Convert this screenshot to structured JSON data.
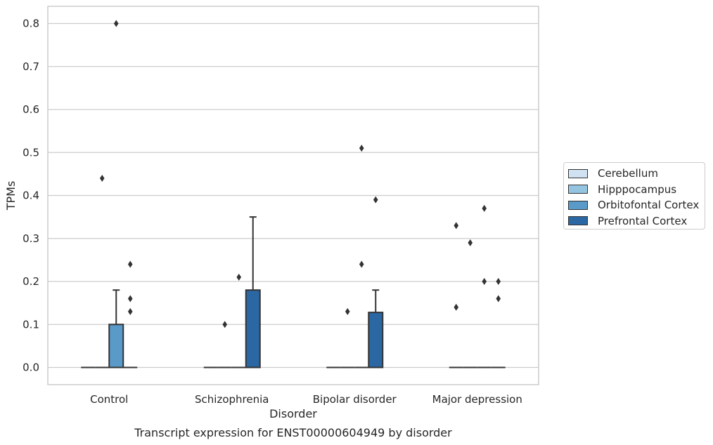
{
  "chart_data": {
    "type": "box",
    "caption": "Transcript expression for ENST00000604949 by disorder",
    "xlabel": "Disorder",
    "ylabel": "TPMs",
    "ylim": [
      -0.04,
      0.84
    ],
    "yticks": [
      "0.0",
      "0.1",
      "0.2",
      "0.3",
      "0.4",
      "0.5",
      "0.6",
      "0.7",
      "0.8"
    ],
    "grid": true,
    "legend_position": "right",
    "categories": [
      "Control",
      "Schizophrenia",
      "Bipolar disorder",
      "Major depression"
    ],
    "series": [
      {
        "name": "Cerebellum",
        "color": "#d0e1f2",
        "boxes": [
          {
            "category": "Control",
            "q1": 0.0,
            "median": 0.0,
            "q3": 0.0,
            "whisker_low": 0.0,
            "whisker_high": 0.0,
            "outliers": []
          },
          {
            "category": "Schizophrenia",
            "q1": 0.0,
            "median": 0.0,
            "q3": 0.0,
            "whisker_low": 0.0,
            "whisker_high": 0.0,
            "outliers": []
          },
          {
            "category": "Bipolar disorder",
            "q1": 0.0,
            "median": 0.0,
            "q3": 0.0,
            "whisker_low": 0.0,
            "whisker_high": 0.0,
            "outliers": []
          },
          {
            "category": "Major depression",
            "q1": 0.0,
            "median": 0.0,
            "q3": 0.0,
            "whisker_low": 0.0,
            "whisker_high": 0.0,
            "outliers": [
              0.33,
              0.14
            ]
          }
        ]
      },
      {
        "name": "Hipppocampus",
        "color": "#94c4df",
        "boxes": [
          {
            "category": "Control",
            "q1": 0.0,
            "median": 0.0,
            "q3": 0.0,
            "whisker_low": 0.0,
            "whisker_high": 0.0,
            "outliers": [
              0.44
            ]
          },
          {
            "category": "Schizophrenia",
            "q1": 0.0,
            "median": 0.0,
            "q3": 0.0,
            "whisker_low": 0.0,
            "whisker_high": 0.0,
            "outliers": [
              0.1
            ]
          },
          {
            "category": "Bipolar disorder",
            "q1": 0.0,
            "median": 0.0,
            "q3": 0.0,
            "whisker_low": 0.0,
            "whisker_high": 0.0,
            "outliers": [
              0.13
            ]
          },
          {
            "category": "Major depression",
            "q1": 0.0,
            "median": 0.0,
            "q3": 0.0,
            "whisker_low": 0.0,
            "whisker_high": 0.0,
            "outliers": [
              0.29
            ]
          }
        ]
      },
      {
        "name": "Orbitofontal Cortex",
        "color": "#5a9ac9",
        "boxes": [
          {
            "category": "Control",
            "q1": 0.0,
            "median": 0.0,
            "q3": 0.1,
            "whisker_low": 0.0,
            "whisker_high": 0.18,
            "outliers": [
              0.8
            ]
          },
          {
            "category": "Schizophrenia",
            "q1": 0.0,
            "median": 0.0,
            "q3": 0.0,
            "whisker_low": 0.0,
            "whisker_high": 0.0,
            "outliers": [
              0.21
            ]
          },
          {
            "category": "Bipolar disorder",
            "q1": 0.0,
            "median": 0.0,
            "q3": 0.0,
            "whisker_low": 0.0,
            "whisker_high": 0.0,
            "outliers": [
              0.24,
              0.51
            ]
          },
          {
            "category": "Major depression",
            "q1": 0.0,
            "median": 0.0,
            "q3": 0.0,
            "whisker_low": 0.0,
            "whisker_high": 0.0,
            "outliers": [
              0.37,
              0.2
            ]
          }
        ]
      },
      {
        "name": "Prefrontal Cortex",
        "color": "#2a67a3",
        "boxes": [
          {
            "category": "Control",
            "q1": 0.0,
            "median": 0.0,
            "q3": 0.0,
            "whisker_low": 0.0,
            "whisker_high": 0.0,
            "outliers": [
              0.24,
              0.16,
              0.13
            ]
          },
          {
            "category": "Schizophrenia",
            "q1": 0.0,
            "median": 0.0,
            "q3": 0.18,
            "whisker_low": 0.0,
            "whisker_high": 0.35,
            "outliers": []
          },
          {
            "category": "Bipolar disorder",
            "q1": 0.0,
            "median": 0.0,
            "q3": 0.128,
            "whisker_low": 0.0,
            "whisker_high": 0.18,
            "outliers": [
              0.39
            ]
          },
          {
            "category": "Major depression",
            "q1": 0.0,
            "median": 0.0,
            "q3": 0.0,
            "whisker_low": 0.0,
            "whisker_high": 0.0,
            "outliers": [
              0.2,
              0.16
            ]
          }
        ]
      }
    ]
  }
}
